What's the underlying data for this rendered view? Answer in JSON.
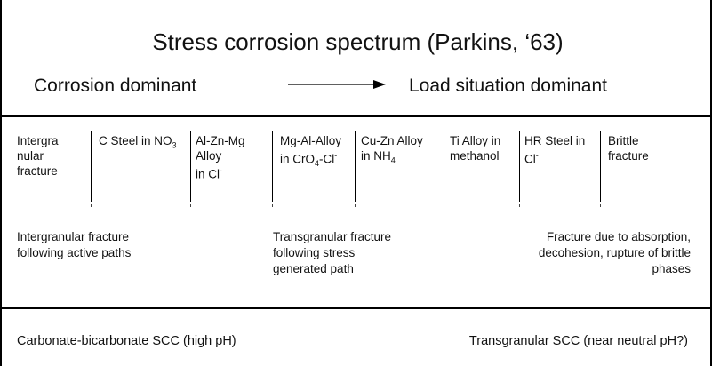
{
  "title": "Stress corrosion spectrum (Parkins, ‘63)",
  "left_heading": "Corrosion dominant",
  "right_heading": "Load situation dominant",
  "arrow_icon": "right-arrow",
  "cells": [
    {
      "l1": "Intergra",
      "l2": "nular",
      "l3": "fracture"
    },
    {
      "l1": "C Steel in NO",
      "l1_sub": "3"
    },
    {
      "l1": "Al-Zn-Mg",
      "l2": "Alloy",
      "l3": "in Cl",
      "l3_sup": "-"
    },
    {
      "l1": "Mg-Al-Alloy",
      "l2": "in CrO",
      "l2_sub": "4",
      "l2b": "-Cl",
      "l2_sup": "-"
    },
    {
      "l1": "Cu-Zn Alloy",
      "l2": "in NH",
      "l2_sub": "4"
    },
    {
      "l1": "Ti Alloy in",
      "l2": "methanol"
    },
    {
      "l1": "HR Steel in",
      "l2": "Cl",
      "l2_sup": "-"
    },
    {
      "l1": "Brittle",
      "l2": "fracture"
    }
  ],
  "groups": [
    {
      "l1": "Intergranular fracture",
      "l2": "following active paths"
    },
    {
      "l1": "Transgranular fracture",
      "l2": "following stress",
      "l3": "generated path"
    },
    {
      "l1": "Fracture due to absorption,",
      "l2": "decohesion, rupture of brittle",
      "l3": "phases"
    }
  ],
  "bottom_left": "Carbonate-bicarbonate SCC (high pH)",
  "bottom_right": "Transgranular SCC (near neutral pH?)"
}
